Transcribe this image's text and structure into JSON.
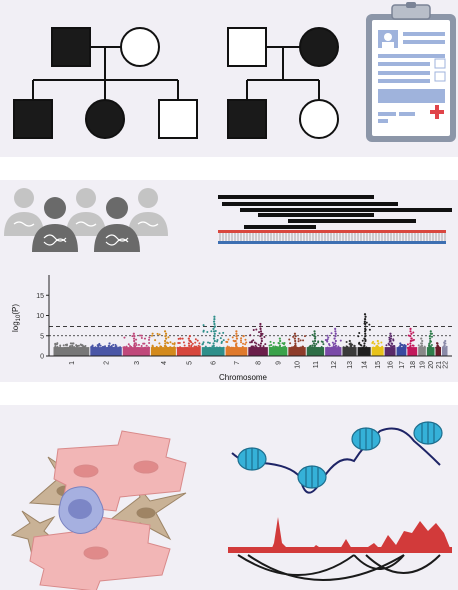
{
  "chart_data": {
    "type": "scatter",
    "title": "",
    "xlabel": "Chromosome",
    "ylabel": "log10(P)",
    "ylim": [
      0,
      20
    ],
    "yticks": [
      0,
      5,
      10,
      15
    ],
    "threshold_lines": [
      7.3,
      5
    ],
    "categories": [
      "1",
      "2",
      "3",
      "4",
      "5",
      "6",
      "7",
      "8",
      "9",
      "10",
      "11",
      "12",
      "13",
      "14",
      "15",
      "16",
      "17",
      "18",
      "19",
      "20",
      "21",
      "22"
    ],
    "peak_values": [
      3.5,
      3.5,
      6,
      6.5,
      5,
      10,
      6.5,
      8,
      4.5,
      6,
      6.5,
      7,
      4,
      10.5,
      4,
      6,
      3.5,
      7,
      4.5,
      6.5,
      3.5,
      4
    ],
    "colors": [
      "#777777",
      "#4a56a6",
      "#c0487a",
      "#d38a1c",
      "#d6463c",
      "#2f8f8a",
      "#e07a2c",
      "#6b1f4a",
      "#3aa24a",
      "#8e3c2a",
      "#2e6e46",
      "#7a4aa8",
      "#3a3a3a",
      "#1f1f1f",
      "#e8c21a",
      "#5a2a6a",
      "#3949a0",
      "#c2185b",
      "#888888",
      "#2e7d4a",
      "#6a1b2a",
      "#8a8aa8"
    ]
  }
}
